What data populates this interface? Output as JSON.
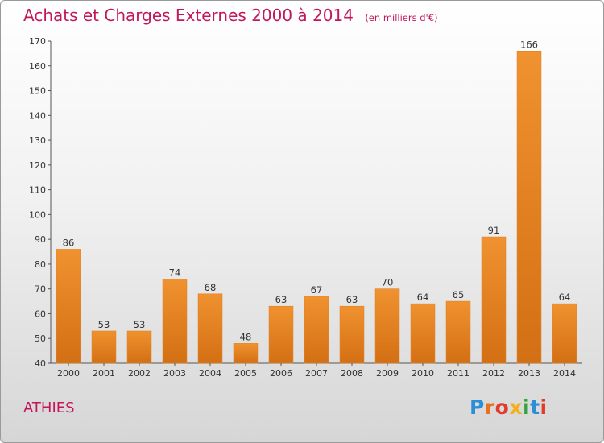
{
  "chart_data": {
    "type": "bar",
    "title": "Achats et Charges Externes 2000 à 2014",
    "subtitle": "(en milliers d'€)",
    "categories": [
      "2000",
      "2001",
      "2002",
      "2003",
      "2004",
      "2005",
      "2006",
      "2007",
      "2008",
      "2009",
      "2010",
      "2011",
      "2012",
      "2013",
      "2014"
    ],
    "values": [
      86,
      53,
      53,
      74,
      68,
      48,
      63,
      67,
      63,
      70,
      64,
      65,
      91,
      166,
      64
    ],
    "xlabel": "",
    "ylabel": "",
    "ylim": [
      40,
      170
    ],
    "yticks": [
      40,
      50,
      60,
      70,
      80,
      90,
      100,
      110,
      120,
      130,
      140,
      150,
      160,
      170
    ],
    "grid": false,
    "legend": "none",
    "bar_color": "#f0922f",
    "bar_color_dark": "#d36f14"
  },
  "footer": {
    "city": "ATHIES",
    "brand": "Proxiti",
    "brand_letter_colors": [
      "#2a8fd6",
      "#e8731c",
      "#e23b2b",
      "#f2b01e",
      "#33a540",
      "#2a8fd6",
      "#e23b2b"
    ]
  }
}
